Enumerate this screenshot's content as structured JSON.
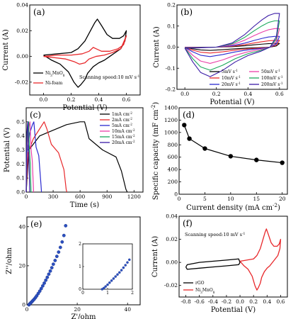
{
  "figure": {
    "panels": [
      {
        "id": "a",
        "label": "(a)",
        "type": "line",
        "xlabel": "Potential (V)",
        "ylabel": "Current (A)",
        "xlim": [
          -0.1,
          0.7
        ],
        "ylim": [
          -0.03,
          0.04
        ],
        "xticks": [
          {
            "v": 0.0,
            "t": "0.0"
          },
          {
            "v": 0.2,
            "t": "0.2"
          },
          {
            "v": 0.4,
            "t": "0.4"
          },
          {
            "v": 0.6,
            "t": "0.6"
          }
        ],
        "yticks": [
          {
            "v": -0.02,
            "t": "-0.02"
          },
          {
            "v": 0.0,
            "t": "0.00"
          },
          {
            "v": 0.02,
            "t": "0.02"
          },
          {
            "v": 0.04,
            "t": "0.04"
          }
        ],
        "annotation": "Scanning speed:10 mV s",
        "annotation_sup": "-1",
        "series": [
          {
            "name": "Ni",
            "sub": "3",
            "name2": "MnO",
            "sub2": "8",
            "color": "#000000",
            "x": [
              0.0,
              0.1,
              0.2,
              0.25,
              0.3,
              0.34,
              0.37,
              0.39,
              0.42,
              0.46,
              0.5,
              0.55,
              0.58,
              0.6,
              0.59,
              0.56,
              0.52,
              0.48,
              0.44,
              0.4,
              0.36,
              0.32,
              0.3,
              0.27,
              0.25,
              0.22,
              0.18,
              0.12,
              0.06,
              0.0
            ],
            "y": [
              0.001,
              0.002,
              0.003,
              0.006,
              0.012,
              0.02,
              0.026,
              0.029,
              0.024,
              0.017,
              0.014,
              0.014,
              0.016,
              0.02,
              0.012,
              0.006,
              0.003,
              0.0,
              -0.003,
              -0.005,
              -0.008,
              -0.013,
              -0.018,
              -0.022,
              -0.024,
              -0.02,
              -0.012,
              -0.006,
              -0.003,
              0.001
            ]
          },
          {
            "name": "Ni-foam",
            "color": "#e8282b",
            "x": [
              0.0,
              0.1,
              0.2,
              0.28,
              0.33,
              0.36,
              0.38,
              0.42,
              0.48,
              0.54,
              0.58,
              0.6,
              0.56,
              0.5,
              0.44,
              0.38,
              0.33,
              0.3,
              0.26,
              0.22,
              0.16,
              0.08,
              0.0
            ],
            "y": [
              0.0,
              0.001,
              0.001,
              0.002,
              0.004,
              0.007,
              0.006,
              0.004,
              0.004,
              0.006,
              0.009,
              0.016,
              0.006,
              0.003,
              0.001,
              0.0,
              -0.002,
              -0.005,
              -0.006,
              -0.004,
              -0.002,
              -0.001,
              0.0
            ]
          }
        ]
      },
      {
        "id": "b",
        "label": "(b)",
        "type": "line",
        "xlabel": "Potential (V)",
        "ylabel": "Current (A)",
        "xlim": [
          -0.05,
          0.65
        ],
        "ylim": [
          -0.2,
          0.2
        ],
        "xticks": [
          {
            "v": 0.0,
            "t": "0.0"
          },
          {
            "v": 0.2,
            "t": "0.2"
          },
          {
            "v": 0.4,
            "t": "0.4"
          },
          {
            "v": 0.6,
            "t": "0.6"
          }
        ],
        "yticks": [
          {
            "v": -0.2,
            "t": "-0.2"
          },
          {
            "v": -0.1,
            "t": "-0.1"
          },
          {
            "v": 0.0,
            "t": "0.0"
          },
          {
            "v": 0.1,
            "t": "0.1"
          },
          {
            "v": 0.2,
            "t": "0.2"
          }
        ],
        "series": [
          {
            "name": "5mV s",
            "sup": "-1",
            "color": "#000000",
            "scale": 0.11
          },
          {
            "name": "10mV s",
            "sup": "-1",
            "color": "#e8282b",
            "scale": 0.2
          },
          {
            "name": "20mV s",
            "sup": "-1",
            "color": "#2a2ad0",
            "scale": 0.32
          },
          {
            "name": "50mV s",
            "sup": "-1",
            "color": "#ea3fa8",
            "scale": 0.55
          },
          {
            "name": "100mV s",
            "sup": "-1",
            "color": "#1aa85a",
            "scale": 0.78
          },
          {
            "name": "200mV s",
            "sup": "-1",
            "color": "#3a1aa6",
            "scale": 1.0
          }
        ],
        "base_shape": {
          "x": [
            0.0,
            0.1,
            0.2,
            0.3,
            0.38,
            0.44,
            0.49,
            0.53,
            0.57,
            0.6,
            0.58,
            0.54,
            0.48,
            0.4,
            0.32,
            0.24,
            0.16,
            0.1,
            0.05,
            0.0
          ],
          "y": [
            -0.005,
            -0.003,
            0.0,
            0.02,
            0.06,
            0.1,
            0.13,
            0.15,
            0.16,
            0.16,
            0.05,
            0.0,
            -0.02,
            -0.04,
            -0.07,
            -0.11,
            -0.14,
            -0.12,
            -0.07,
            -0.005
          ]
        }
      },
      {
        "id": "c",
        "label": "(c)",
        "type": "line",
        "xlabel": "Time (s)",
        "ylabel": "Potential (V)",
        "xlim": [
          0,
          1300
        ],
        "ylim": [
          0.0,
          0.6
        ],
        "xticks": [
          {
            "v": 0,
            "t": "0"
          },
          {
            "v": 300,
            "t": "300"
          },
          {
            "v": 600,
            "t": "600"
          },
          {
            "v": 900,
            "t": "900"
          },
          {
            "v": 1200,
            "t": "1200"
          }
        ],
        "yticks": [
          {
            "v": 0.0,
            "t": "0.0"
          },
          {
            "v": 0.1,
            "t": "0.1"
          },
          {
            "v": 0.2,
            "t": "0.2"
          },
          {
            "v": 0.3,
            "t": "0.3"
          },
          {
            "v": 0.4,
            "t": "0.4"
          },
          {
            "v": 0.5,
            "t": "0.5"
          }
        ],
        "series": [
          {
            "name": "1mA cm",
            "sup": "-2",
            "color": "#000000",
            "x": [
              0,
              30,
              150,
              300,
              450,
              600,
              650,
              700,
              850,
              1000,
              1060,
              1110,
              1125
            ],
            "y": [
              0.0,
              0.3,
              0.4,
              0.44,
              0.48,
              0.5,
              0.5,
              0.38,
              0.3,
              0.25,
              0.15,
              0.02,
              0.0
            ]
          },
          {
            "name": "2mA cm",
            "sup": "-2",
            "color": "#e8282b",
            "x": [
              0,
              20,
              80,
              150,
              200,
              230,
              280,
              360,
              420,
              445,
              452
            ],
            "y": [
              0.0,
              0.28,
              0.38,
              0.45,
              0.5,
              0.45,
              0.34,
              0.28,
              0.16,
              0.02,
              0.0
            ]
          },
          {
            "name": "5mA cm",
            "sup": "-2",
            "color": "#2a2ad0",
            "x": [
              0,
              10,
              40,
              70,
              85,
              110,
              140,
              165,
              170
            ],
            "y": [
              0.0,
              0.28,
              0.42,
              0.48,
              0.5,
              0.32,
              0.26,
              0.05,
              0.0
            ]
          },
          {
            "name": "10mA cm",
            "sup": "-2",
            "color": "#ea3fa8",
            "x": [
              0,
              6,
              20,
              35,
              42,
              55,
              68,
              80,
              82
            ],
            "y": [
              0.0,
              0.28,
              0.42,
              0.48,
              0.5,
              0.3,
              0.22,
              0.04,
              0.0
            ]
          },
          {
            "name": "15mA cm",
            "sup": "-2",
            "color": "#1aa85a",
            "x": [
              0,
              4,
              12,
              22,
              27,
              36,
              45,
              52,
              54
            ],
            "y": [
              0.0,
              0.28,
              0.42,
              0.48,
              0.5,
              0.3,
              0.2,
              0.04,
              0.0
            ]
          },
          {
            "name": "20mA cm",
            "sup": "-2",
            "color": "#3a1aa6",
            "x": [
              0,
              3,
              8,
              15,
              19,
              26,
              32,
              38,
              40
            ],
            "y": [
              0.0,
              0.28,
              0.42,
              0.48,
              0.5,
              0.3,
              0.2,
              0.04,
              0.0
            ]
          }
        ]
      },
      {
        "id": "d",
        "label": "(d)",
        "type": "scatter",
        "xlabel": "Current density (mA cm",
        "xlabel_sup": "-2",
        "xlabel_tail": ")",
        "ylabel": "Specific capacity (mF cm",
        "ylabel_sup": "-2",
        "ylabel_tail": ")",
        "xlim": [
          0,
          21
        ],
        "ylim": [
          0,
          1400
        ],
        "xticks": [
          {
            "v": 0,
            "t": "0"
          },
          {
            "v": 5,
            "t": "5"
          },
          {
            "v": 10,
            "t": "10"
          },
          {
            "v": 15,
            "t": "15"
          },
          {
            "v": 20,
            "t": "20"
          }
        ],
        "yticks": [
          {
            "v": 0,
            "t": "0"
          },
          {
            "v": 200,
            "t": "200"
          },
          {
            "v": 400,
            "t": "400"
          },
          {
            "v": 600,
            "t": "600"
          },
          {
            "v": 800,
            "t": "800"
          },
          {
            "v": 1000,
            "t": "1000"
          },
          {
            "v": 1200,
            "t": "1200"
          },
          {
            "v": 1400,
            "t": "1400"
          }
        ],
        "series": [
          {
            "color": "#000000",
            "x": [
              1,
              2,
              5,
              10,
              15,
              20
            ],
            "y": [
              1120,
              900,
              740,
              615,
              555,
              510
            ]
          }
        ]
      },
      {
        "id": "e",
        "label": "(e)",
        "type": "scatter",
        "xlabel": "Z'/ohm",
        "ylabel": "Z''/ohm",
        "xlim": [
          0,
          45
        ],
        "ylim": [
          0,
          45
        ],
        "xticks": [
          {
            "v": 0,
            "t": "0"
          },
          {
            "v": 20,
            "t": "20"
          },
          {
            "v": 40,
            "t": "40"
          }
        ],
        "yticks": [
          {
            "v": 0,
            "t": "0"
          },
          {
            "v": 20,
            "t": "20"
          },
          {
            "v": 40,
            "t": "40"
          }
        ],
        "series": [
          {
            "color": "#2a4fc0",
            "x": [
              0.8,
              1.0,
              1.3,
              1.6,
              2.0,
              2.4,
              2.9,
              3.4,
              3.9,
              4.5,
              5.1,
              5.7,
              6.3,
              6.9,
              7.5,
              8.1,
              8.7,
              9.3,
              9.9,
              10.5,
              11.2,
              11.9,
              12.6,
              13.3,
              14.0,
              14.7,
              15.4
            ],
            "y": [
              0.0,
              0.3,
              0.7,
              1.1,
              1.6,
              2.2,
              2.9,
              3.7,
              4.6,
              5.8,
              7.0,
              8.3,
              9.7,
              11.1,
              12.6,
              14.1,
              15.7,
              17.3,
              19.0,
              20.8,
              22.7,
              24.8,
              27.0,
              29.4,
              32.2,
              35.5,
              40.5
            ]
          }
        ],
        "inset": {
          "xlim": [
            0,
            2
          ],
          "ylim": [
            0,
            2
          ],
          "xticks": [
            {
              "v": 0,
              "t": "0"
            },
            {
              "v": 1,
              "t": "1"
            },
            {
              "v": 2,
              "t": "2"
            }
          ],
          "yticks": [
            {
              "v": 0,
              "t": "0"
            },
            {
              "v": 1,
              "t": "1"
            },
            {
              "v": 2,
              "t": "2"
            }
          ],
          "x": [
            0.78,
            0.85,
            0.92,
            1.0,
            1.08,
            1.16,
            1.24,
            1.32,
            1.4,
            1.48,
            1.56,
            1.64,
            1.72,
            1.8,
            1.88
          ],
          "y": [
            0.0,
            0.05,
            0.12,
            0.2,
            0.29,
            0.38,
            0.47,
            0.56,
            0.65,
            0.74,
            0.84,
            0.95,
            1.06,
            1.18,
            1.3
          ]
        }
      },
      {
        "id": "f",
        "label": "(f)",
        "type": "line",
        "xlabel": "Potential (V)",
        "ylabel": "Current (A)",
        "xlim": [
          -0.9,
          0.7
        ],
        "ylim": [
          -0.03,
          0.04
        ],
        "xticks": [
          {
            "v": -0.8,
            "t": "-0.8"
          },
          {
            "v": -0.6,
            "t": "-0.6"
          },
          {
            "v": -0.4,
            "t": "-0.4"
          },
          {
            "v": -0.2,
            "t": "-0.2"
          },
          {
            "v": 0.0,
            "t": "0.0"
          },
          {
            "v": 0.2,
            "t": "0.2"
          },
          {
            "v": 0.4,
            "t": "0.4"
          },
          {
            "v": 0.6,
            "t": "0.6"
          }
        ],
        "yticks": [
          {
            "v": -0.02,
            "t": "-0.02"
          },
          {
            "v": 0.0,
            "t": "0.00"
          },
          {
            "v": 0.02,
            "t": "0.02"
          },
          {
            "v": 0.04,
            "t": "0.04"
          }
        ],
        "annotation": "Scanning speed:10 mV s",
        "annotation_sup": "-1",
        "series": [
          {
            "name": "rGO",
            "color": "#000000",
            "x": [
              -0.8,
              -0.78,
              -0.6,
              -0.4,
              -0.2,
              -0.02,
              0.0,
              -0.02,
              -0.2,
              -0.4,
              -0.6,
              -0.78,
              -0.8
            ],
            "y": [
              -0.004,
              -0.002,
              0.0,
              0.001,
              0.002,
              0.003,
              0.0,
              -0.002,
              -0.003,
              -0.004,
              -0.005,
              -0.006,
              -0.004
            ]
          },
          {
            "name": "Ni",
            "sub": "3",
            "name2": "MnO",
            "sub2": "8",
            "color": "#e8282b",
            "x": [
              0.0,
              0.1,
              0.2,
              0.25,
              0.3,
              0.34,
              0.37,
              0.39,
              0.42,
              0.46,
              0.5,
              0.55,
              0.58,
              0.6,
              0.59,
              0.56,
              0.52,
              0.48,
              0.44,
              0.4,
              0.36,
              0.32,
              0.3,
              0.27,
              0.25,
              0.22,
              0.18,
              0.12,
              0.06,
              0.0
            ],
            "y": [
              0.001,
              0.002,
              0.003,
              0.006,
              0.012,
              0.02,
              0.026,
              0.029,
              0.024,
              0.017,
              0.014,
              0.014,
              0.016,
              0.02,
              0.012,
              0.006,
              0.003,
              0.0,
              -0.003,
              -0.005,
              -0.008,
              -0.013,
              -0.018,
              -0.022,
              -0.024,
              -0.02,
              -0.012,
              -0.006,
              -0.003,
              0.001
            ]
          }
        ]
      }
    ]
  }
}
